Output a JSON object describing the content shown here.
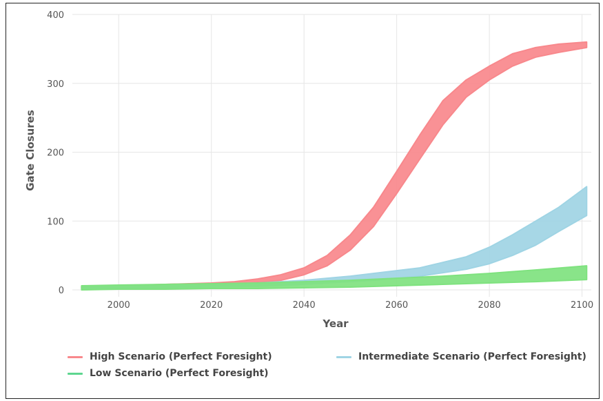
{
  "colors": {
    "high": "#f8888c",
    "intermediate": "#9fd4e4",
    "low": "#7fe27f",
    "grid": "#e6e6e6"
  },
  "chart_data": {
    "type": "area",
    "title": "",
    "xlabel": "Year",
    "ylabel": "Gate Closures",
    "xlim": [
      1990,
      2102
    ],
    "ylim": [
      -10,
      400
    ],
    "x_ticks": [
      2000,
      2020,
      2040,
      2060,
      2080,
      2100
    ],
    "y_ticks": [
      0,
      100,
      200,
      300,
      400
    ],
    "grid": true,
    "legend_position": "bottom",
    "series": [
      {
        "name": "High Scenario (Perfect Foresight)",
        "x": [
          1992,
          2000,
          2010,
          2020,
          2025,
          2030,
          2035,
          2040,
          2045,
          2050,
          2055,
          2060,
          2065,
          2070,
          2075,
          2080,
          2085,
          2090,
          2095,
          2101
        ],
        "low": [
          2,
          2,
          4,
          6,
          8,
          11,
          14,
          22,
          35,
          58,
          92,
          140,
          190,
          240,
          280,
          305,
          325,
          338,
          345,
          352
        ],
        "high": [
          5,
          6,
          8,
          10,
          12,
          16,
          22,
          32,
          50,
          80,
          120,
          172,
          225,
          275,
          305,
          325,
          343,
          352,
          357,
          360
        ]
      },
      {
        "name": "Intermediate Scenario (Perfect Foresight)",
        "x": [
          1992,
          2000,
          2010,
          2020,
          2030,
          2040,
          2045,
          2050,
          2055,
          2060,
          2065,
          2070,
          2075,
          2080,
          2085,
          2090,
          2095,
          2101
        ],
        "low": [
          2,
          2,
          2,
          4,
          5,
          8,
          10,
          12,
          14,
          17,
          20,
          25,
          30,
          38,
          50,
          65,
          85,
          108
        ],
        "high": [
          5,
          5,
          6,
          8,
          10,
          14,
          17,
          20,
          24,
          28,
          32,
          40,
          48,
          62,
          80,
          100,
          120,
          150
        ]
      },
      {
        "name": "Low Scenario (Perfect Foresight)",
        "x": [
          1992,
          2000,
          2010,
          2020,
          2030,
          2040,
          2050,
          2060,
          2070,
          2080,
          2090,
          2101
        ],
        "low": [
          0,
          1,
          1,
          2,
          2,
          3,
          4,
          6,
          8,
          10,
          12,
          15
        ],
        "high": [
          6,
          7,
          8,
          9,
          10,
          12,
          14,
          17,
          20,
          24,
          29,
          35
        ]
      }
    ]
  }
}
